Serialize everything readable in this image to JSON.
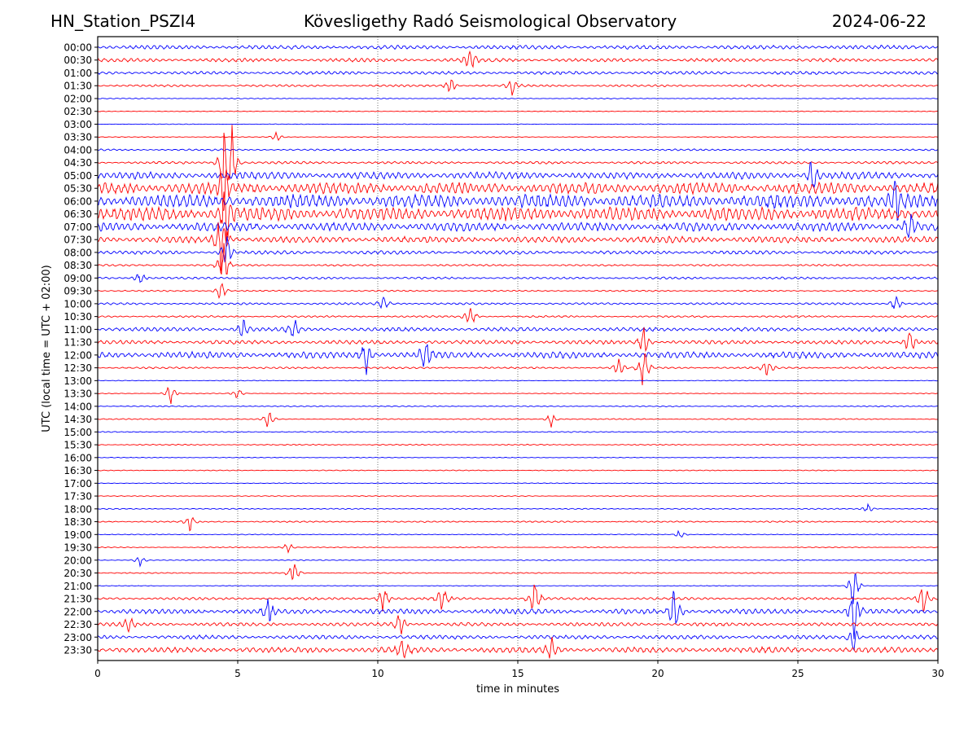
{
  "header": {
    "station": "HN_Station_PSZI4",
    "observatory": "Kövesligethy Radó Seismological Observatory",
    "date": "2024-06-22"
  },
  "chart_data": {
    "type": "line",
    "title": "Kövesligethy Radó Seismological Observatory",
    "xlabel": "time in minutes",
    "ylabel": "UTC (local time = UTC + 02:00)",
    "xlim": [
      0,
      30
    ],
    "xticks": [
      0,
      5,
      10,
      15,
      20,
      25,
      30
    ],
    "xtick_labels": [
      "0",
      "5",
      "10",
      "15",
      "20",
      "25",
      "30"
    ],
    "grid": "vertical dotted at x ticks",
    "row_colors": [
      "#0000ff",
      "#ff0000"
    ],
    "rows": [
      {
        "label": "00:00",
        "activity": 0.55,
        "events": []
      },
      {
        "label": "00:30",
        "activity": 0.5,
        "events": [
          [
            13.3,
            1.2
          ]
        ]
      },
      {
        "label": "01:00",
        "activity": 0.45,
        "events": []
      },
      {
        "label": "01:30",
        "activity": 0.3,
        "events": [
          [
            12.6,
            0.8
          ],
          [
            14.8,
            0.9
          ]
        ]
      },
      {
        "label": "02:00",
        "activity": 0.12,
        "events": []
      },
      {
        "label": "02:30",
        "activity": 0.1,
        "events": []
      },
      {
        "label": "03:00",
        "activity": 0.08,
        "events": []
      },
      {
        "label": "03:30",
        "activity": 0.1,
        "events": [
          [
            6.4,
            0.6
          ]
        ]
      },
      {
        "label": "04:00",
        "activity": 0.25,
        "events": []
      },
      {
        "label": "04:30",
        "activity": 0.35,
        "events": [
          [
            4.5,
            4.0
          ],
          [
            4.8,
            3.0
          ]
        ]
      },
      {
        "label": "05:00",
        "activity": 1.0,
        "events": [
          [
            25.5,
            1.8
          ]
        ]
      },
      {
        "label": "05:30",
        "activity": 1.6,
        "events": [
          [
            4.5,
            3.0
          ]
        ]
      },
      {
        "label": "06:00",
        "activity": 1.9,
        "events": [
          [
            28.5,
            2.0
          ]
        ]
      },
      {
        "label": "06:30",
        "activity": 1.9,
        "events": [
          [
            4.6,
            3.5
          ]
        ]
      },
      {
        "label": "07:00",
        "activity": 1.2,
        "events": [
          [
            29.0,
            1.5
          ]
        ]
      },
      {
        "label": "07:30",
        "activity": 0.9,
        "events": [
          [
            4.4,
            3.0
          ]
        ]
      },
      {
        "label": "08:00",
        "activity": 0.5,
        "events": [
          [
            4.6,
            2.0
          ]
        ]
      },
      {
        "label": "08:30",
        "activity": 0.25,
        "events": [
          [
            4.5,
            2.5
          ]
        ]
      },
      {
        "label": "09:00",
        "activity": 0.3,
        "events": [
          [
            1.5,
            0.8
          ]
        ]
      },
      {
        "label": "09:30",
        "activity": 0.2,
        "events": [
          [
            4.4,
            1.5
          ]
        ]
      },
      {
        "label": "10:00",
        "activity": 0.3,
        "events": [
          [
            10.2,
            0.8
          ],
          [
            28.5,
            0.9
          ]
        ]
      },
      {
        "label": "10:30",
        "activity": 0.25,
        "events": [
          [
            13.3,
            1.2
          ]
        ]
      },
      {
        "label": "11:00",
        "activity": 0.55,
        "events": [
          [
            7.0,
            1.2
          ],
          [
            5.2,
            1.0
          ]
        ]
      },
      {
        "label": "11:30",
        "activity": 0.55,
        "events": [
          [
            19.5,
            1.5
          ],
          [
            29.0,
            1.5
          ]
        ]
      },
      {
        "label": "12:00",
        "activity": 0.9,
        "events": [
          [
            9.6,
            2.0
          ],
          [
            11.7,
            2.0
          ]
        ]
      },
      {
        "label": "12:30",
        "activity": 0.25,
        "events": [
          [
            19.5,
            2.5
          ],
          [
            18.6,
            1.0
          ],
          [
            23.9,
            1.0
          ]
        ]
      },
      {
        "label": "13:00",
        "activity": 0.1,
        "events": []
      },
      {
        "label": "13:30",
        "activity": 0.1,
        "events": [
          [
            2.6,
            1.2
          ],
          [
            5.0,
            0.6
          ]
        ]
      },
      {
        "label": "14:00",
        "activity": 0.15,
        "events": []
      },
      {
        "label": "14:30",
        "activity": 0.15,
        "events": [
          [
            6.1,
            1.0
          ],
          [
            16.2,
            0.8
          ]
        ]
      },
      {
        "label": "15:00",
        "activity": 0.15,
        "events": []
      },
      {
        "label": "15:30",
        "activity": 0.15,
        "events": []
      },
      {
        "label": "16:00",
        "activity": 0.1,
        "events": []
      },
      {
        "label": "16:30",
        "activity": 0.12,
        "events": []
      },
      {
        "label": "17:00",
        "activity": 0.1,
        "events": []
      },
      {
        "label": "17:30",
        "activity": 0.1,
        "events": []
      },
      {
        "label": "18:00",
        "activity": 0.15,
        "events": [
          [
            27.5,
            0.5
          ]
        ]
      },
      {
        "label": "18:30",
        "activity": 0.2,
        "events": [
          [
            3.3,
            0.8
          ]
        ]
      },
      {
        "label": "19:00",
        "activity": 0.12,
        "events": [
          [
            20.8,
            0.6
          ]
        ]
      },
      {
        "label": "19:30",
        "activity": 0.12,
        "events": [
          [
            6.8,
            0.6
          ]
        ]
      },
      {
        "label": "20:00",
        "activity": 0.15,
        "events": [
          [
            1.5,
            0.6
          ]
        ]
      },
      {
        "label": "20:30",
        "activity": 0.15,
        "events": [
          [
            7.0,
            1.5
          ]
        ]
      },
      {
        "label": "21:00",
        "activity": 0.08,
        "events": [
          [
            27.0,
            2.5
          ]
        ]
      },
      {
        "label": "21:30",
        "activity": 0.35,
        "events": [
          [
            15.6,
            2.5
          ],
          [
            10.2,
            1.5
          ],
          [
            12.3,
            1.5
          ],
          [
            29.5,
            1.8
          ]
        ]
      },
      {
        "label": "22:00",
        "activity": 0.7,
        "events": [
          [
            20.6,
            2.5
          ],
          [
            27.0,
            2.5
          ],
          [
            6.1,
            1.5
          ]
        ]
      },
      {
        "label": "22:30",
        "activity": 0.5,
        "events": [
          [
            1.1,
            1.0
          ],
          [
            10.8,
            1.2
          ]
        ]
      },
      {
        "label": "23:00",
        "activity": 0.55,
        "events": [
          [
            27.0,
            1.5
          ]
        ]
      },
      {
        "label": "23:30",
        "activity": 0.8,
        "events": [
          [
            10.9,
            1.2
          ],
          [
            16.2,
            1.2
          ]
        ]
      }
    ]
  }
}
